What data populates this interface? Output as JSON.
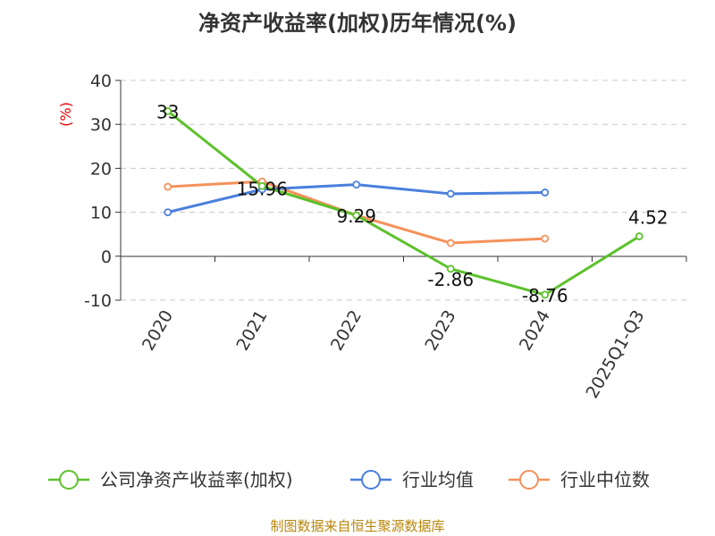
{
  "chart_data": {
    "type": "line",
    "title": "净资产收益率(加权)历年情况(%)",
    "ylabel": "(%)",
    "xlabel": "",
    "categories": [
      "2020",
      "2021",
      "2022",
      "2023",
      "2024",
      "2025Q1-Q3"
    ],
    "ylim": [
      -10,
      40
    ],
    "yticks": [
      40,
      30,
      20,
      10,
      0,
      -10
    ],
    "grid": true,
    "legend_position": "bottom",
    "series": [
      {
        "name": "公司净资产收益率(加权)",
        "color": "#5cc12b",
        "values": [
          33,
          15.96,
          9.29,
          -2.86,
          -8.76,
          4.52
        ],
        "labels": [
          "33",
          "15.96",
          "9.29",
          "-2.86",
          "-8.76",
          "4.52"
        ]
      },
      {
        "name": "行业均值",
        "color": "#4a7fdc",
        "values": [
          10,
          15.2,
          16.3,
          14.2,
          14.5,
          null
        ]
      },
      {
        "name": "行业中位数",
        "color": "#f4915a",
        "values": [
          15.8,
          17,
          9.3,
          3,
          4,
          null
        ]
      }
    ]
  },
  "source": "制图数据来自恒生聚源数据库"
}
